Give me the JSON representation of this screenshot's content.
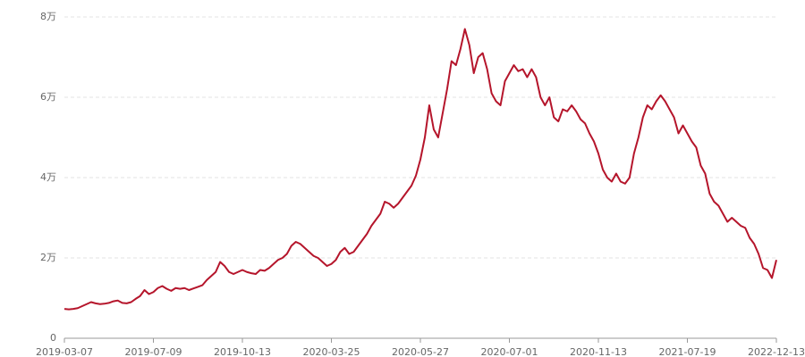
{
  "chart_data": {
    "type": "line",
    "color": "#b5152b",
    "grid": true,
    "categories": [
      "2019-03-07",
      null,
      null,
      null,
      null,
      null,
      null,
      null,
      null,
      null,
      null,
      null,
      null,
      null,
      null,
      null,
      null,
      null,
      null,
      null,
      "2019-07-09",
      null,
      null,
      null,
      null,
      null,
      null,
      null,
      null,
      null,
      null,
      null,
      null,
      null,
      null,
      null,
      null,
      null,
      null,
      null,
      "2019-10-13",
      null,
      null,
      null,
      null,
      null,
      null,
      null,
      null,
      null,
      null,
      null,
      null,
      null,
      null,
      null,
      null,
      null,
      null,
      null,
      "2020-03-25",
      null,
      null,
      null,
      null,
      null,
      null,
      null,
      null,
      null,
      null,
      null,
      null,
      null,
      null,
      null,
      null,
      null,
      null,
      null,
      "2020-05-27",
      null,
      null,
      null,
      null,
      null,
      null,
      null,
      null,
      null,
      null,
      null,
      null,
      null,
      null,
      null,
      null,
      null,
      null,
      null,
      "2020-07-01",
      null,
      null,
      null,
      null,
      null,
      null,
      null,
      null,
      null,
      null,
      null,
      null,
      null,
      null,
      null,
      null,
      null,
      null,
      null,
      "2020-11-13",
      null,
      null,
      null,
      null,
      null,
      null,
      null,
      null,
      null,
      null,
      null,
      null,
      null,
      null,
      null,
      null,
      null,
      null,
      null,
      "2021-07-19",
      null,
      null,
      null,
      null,
      null,
      null,
      null,
      null,
      null,
      null,
      null,
      null,
      null,
      null,
      null,
      null,
      null,
      null,
      null,
      "2022-12-13"
    ],
    "values": [
      7300,
      7200,
      7300,
      7500,
      8000,
      8500,
      9000,
      8700,
      8500,
      8600,
      8800,
      9200,
      9400,
      8800,
      8700,
      9000,
      9800,
      10500,
      12000,
      11000,
      11500,
      12500,
      13000,
      12300,
      11800,
      12500,
      12300,
      12500,
      12000,
      12400,
      12800,
      13200,
      14500,
      15500,
      16500,
      19000,
      18000,
      16500,
      16000,
      16500,
      17000,
      16500,
      16200,
      16000,
      17000,
      16800,
      17500,
      18500,
      19500,
      20000,
      21000,
      23000,
      24000,
      23500,
      22500,
      21500,
      20500,
      20000,
      19000,
      18000,
      18500,
      19500,
      21500,
      22500,
      21000,
      21500,
      23000,
      24500,
      26000,
      28000,
      29500,
      31000,
      34000,
      33500,
      32500,
      33500,
      35000,
      36500,
      38000,
      40500,
      44500,
      50000,
      58000,
      52000,
      50000,
      56000,
      62000,
      69000,
      68000,
      72000,
      77000,
      73000,
      66000,
      70000,
      71000,
      67000,
      61000,
      59000,
      58000,
      64000,
      66000,
      68000,
      66500,
      67000,
      65000,
      67000,
      65000,
      60000,
      58000,
      60000,
      55000,
      54000,
      57000,
      56500,
      58000,
      56500,
      54500,
      53500,
      51000,
      49000,
      46000,
      42000,
      40000,
      39000,
      41000,
      39000,
      38500,
      40000,
      46000,
      50000,
      55000,
      58000,
      57000,
      59000,
      60500,
      59000,
      57000,
      55000,
      51000,
      53000,
      51000,
      49000,
      47500,
      43000,
      41000,
      36000,
      34000,
      33000,
      31000,
      29000,
      30000,
      29000,
      28000,
      27500,
      25000,
      23500,
      21000,
      17500,
      17000,
      15000,
      19500
    ],
    "ylim": [
      0,
      80000
    ],
    "yticks": [
      0,
      {
        "value": 20000,
        "label": "2万"
      },
      {
        "value": 40000,
        "label": "4万"
      },
      {
        "value": 60000,
        "label": "6万"
      },
      {
        "value": 80000,
        "label": "8万"
      }
    ]
  }
}
